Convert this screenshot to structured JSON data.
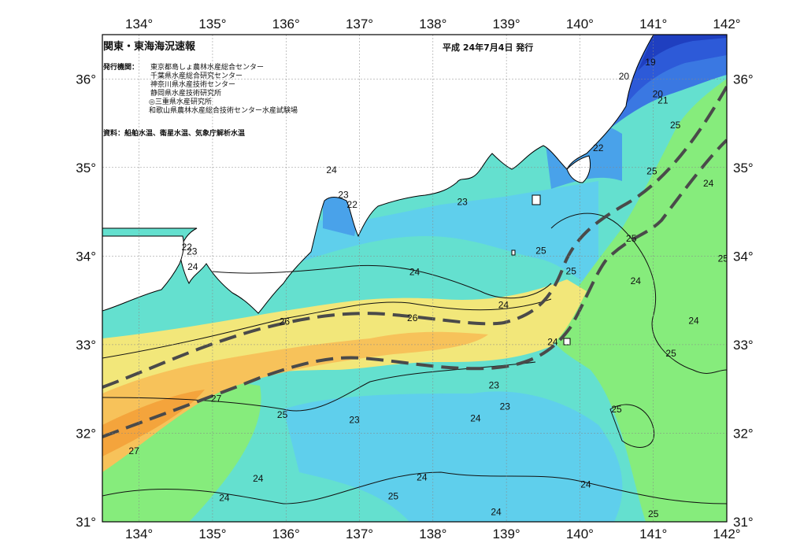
{
  "title": "関東・東海海況速報",
  "issue_date": "平成 24年7月4日 発行",
  "publisher": {
    "label": "発行機関：",
    "organizations": [
      "東京都島しょ農林水産総合センター",
      "千葉県水産総合研究センター",
      "神奈川県水産技術センター",
      "静岡県水産技術研究所",
      "◎三重県水産研究所",
      "和歌山県農林水産総合技術センター水産試験場"
    ]
  },
  "source_note": "資料：船舶水温、衛星水温、気象庁解析水温",
  "axes": {
    "lon_ticks": [
      "134°",
      "135°",
      "136°",
      "137°",
      "138°",
      "139°",
      "140°",
      "141°",
      "142°"
    ],
    "lat_ticks": [
      "36°",
      "35°",
      "34°",
      "33°",
      "32°",
      "31°"
    ],
    "lon_range": [
      133.5,
      142.0
    ],
    "lat_range": [
      31.0,
      36.5
    ]
  },
  "map_data": {
    "type": "sea-surface-temperature",
    "units": "°C",
    "isotherm_labels": [
      {
        "value": "19",
        "lon": 140.96,
        "lat": 36.19
      },
      {
        "value": "20",
        "lon": 140.6,
        "lat": 36.03
      },
      {
        "value": "20",
        "lon": 141.06,
        "lat": 35.83
      },
      {
        "value": "21",
        "lon": 141.13,
        "lat": 35.76
      },
      {
        "value": "25",
        "lon": 141.3,
        "lat": 35.48
      },
      {
        "value": "22",
        "lon": 140.25,
        "lat": 35.22
      },
      {
        "value": "25",
        "lon": 140.98,
        "lat": 34.96
      },
      {
        "value": "24",
        "lon": 141.75,
        "lat": 34.82
      },
      {
        "value": "24",
        "lon": 136.62,
        "lat": 34.97
      },
      {
        "value": "23",
        "lon": 136.78,
        "lat": 34.69
      },
      {
        "value": "22",
        "lon": 136.9,
        "lat": 34.58
      },
      {
        "value": "23",
        "lon": 138.4,
        "lat": 34.61
      },
      {
        "value": "25",
        "lon": 140.7,
        "lat": 34.2
      },
      {
        "value": "25",
        "lon": 141.95,
        "lat": 33.97
      },
      {
        "value": "25",
        "lon": 139.47,
        "lat": 34.06
      },
      {
        "value": "25",
        "lon": 139.88,
        "lat": 33.83
      },
      {
        "value": "24",
        "lon": 140.76,
        "lat": 33.72
      },
      {
        "value": "22",
        "lon": 134.65,
        "lat": 34.1
      },
      {
        "value": "23",
        "lon": 134.72,
        "lat": 34.05
      },
      {
        "value": "24",
        "lon": 134.73,
        "lat": 33.88
      },
      {
        "value": "24",
        "lon": 137.75,
        "lat": 33.82
      },
      {
        "value": "24",
        "lon": 138.96,
        "lat": 33.45
      },
      {
        "value": "26",
        "lon": 135.98,
        "lat": 33.26
      },
      {
        "value": "26",
        "lon": 137.72,
        "lat": 33.3
      },
      {
        "value": "24",
        "lon": 141.55,
        "lat": 33.27
      },
      {
        "value": "24",
        "lon": 139.63,
        "lat": 33.03
      },
      {
        "value": "25",
        "lon": 141.24,
        "lat": 32.9
      },
      {
        "value": "23",
        "lon": 138.83,
        "lat": 32.54
      },
      {
        "value": "23",
        "lon": 138.98,
        "lat": 32.3
      },
      {
        "value": "24",
        "lon": 138.58,
        "lat": 32.17
      },
      {
        "value": "25",
        "lon": 140.5,
        "lat": 32.27
      },
      {
        "value": "27",
        "lon": 135.05,
        "lat": 32.39
      },
      {
        "value": "25",
        "lon": 135.95,
        "lat": 32.21
      },
      {
        "value": "23",
        "lon": 136.93,
        "lat": 32.15
      },
      {
        "value": "27",
        "lon": 133.93,
        "lat": 31.8
      },
      {
        "value": "24",
        "lon": 135.62,
        "lat": 31.49
      },
      {
        "value": "24",
        "lon": 137.85,
        "lat": 31.5
      },
      {
        "value": "24",
        "lon": 140.08,
        "lat": 31.42
      },
      {
        "value": "24",
        "lon": 135.16,
        "lat": 31.27
      },
      {
        "value": "25",
        "lon": 137.46,
        "lat": 31.29
      },
      {
        "value": "24",
        "lon": 138.86,
        "lat": 31.11
      },
      {
        "value": "25",
        "lon": 141.0,
        "lat": 31.09
      }
    ]
  },
  "colors": {
    "t19": "#1f3fc0",
    "t20": "#2d5ad8",
    "t21": "#3a78e2",
    "t22": "#49a2ea",
    "t23": "#5fcfec",
    "t24": "#64e0cf",
    "t25": "#86ec7c",
    "t26": "#f2e77a",
    "t27": "#f7c25a",
    "t28": "#f4a43c",
    "land": "#ffffff",
    "current": "#4a4a4a"
  }
}
